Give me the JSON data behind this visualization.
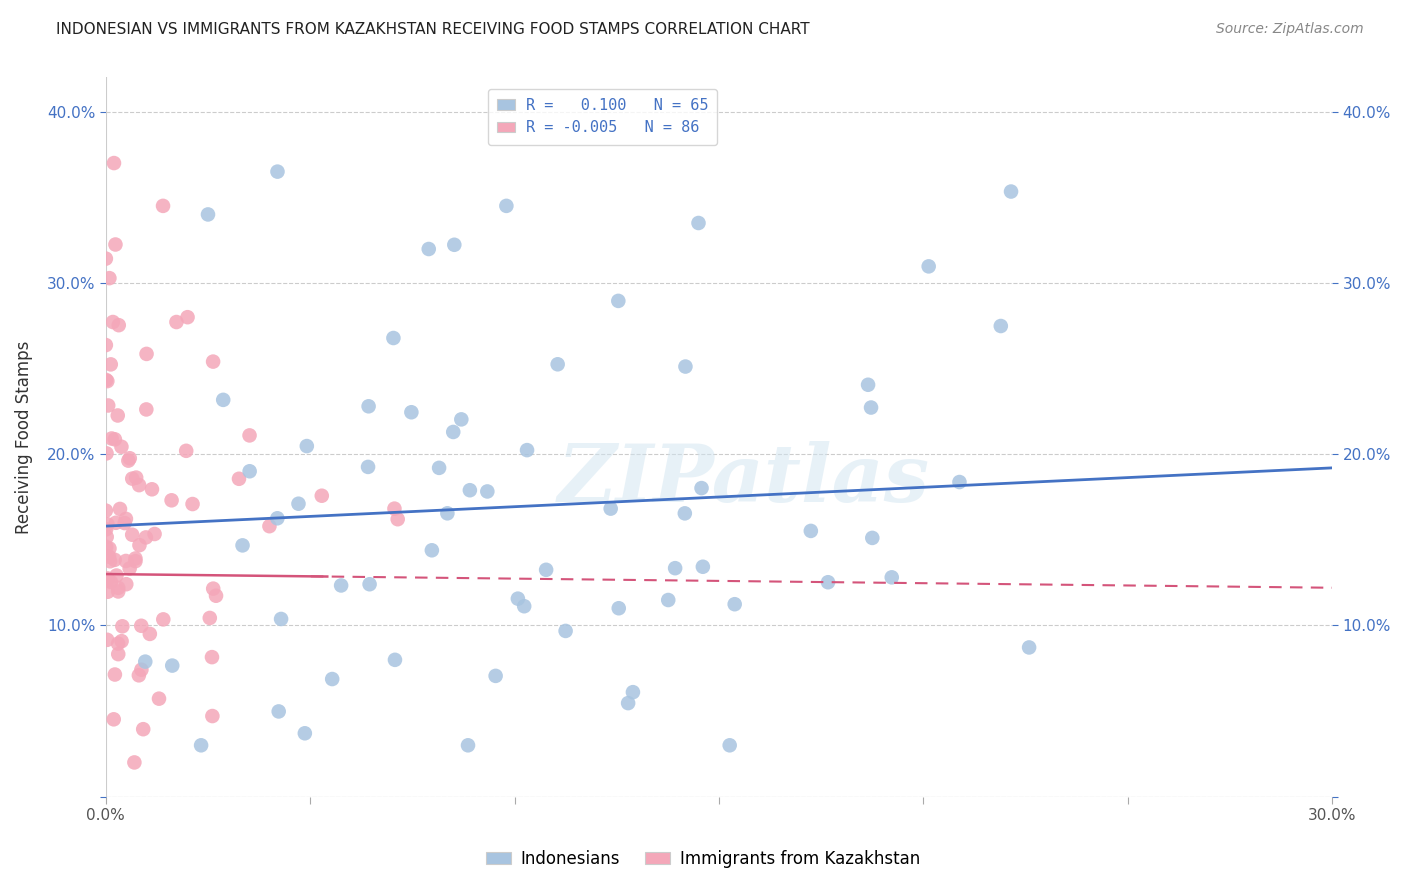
{
  "title": "INDONESIAN VS IMMIGRANTS FROM KAZAKHSTAN RECEIVING FOOD STAMPS CORRELATION CHART",
  "source": "Source: ZipAtlas.com",
  "ylabel": "Receiving Food Stamps",
  "x_ticks": [
    0.0,
    0.05,
    0.1,
    0.15,
    0.2,
    0.25,
    0.3
  ],
  "x_tick_labels": [
    "0.0%",
    "",
    "",
    "",
    "",
    "",
    "30.0%"
  ],
  "y_ticks": [
    0.0,
    0.1,
    0.2,
    0.3,
    0.4
  ],
  "y_tick_labels_left": [
    "",
    "10.0%",
    "20.0%",
    "30.0%",
    "40.0%"
  ],
  "y_tick_labels_right": [
    "",
    "10.0%",
    "20.0%",
    "30.0%",
    "40.0%"
  ],
  "blue_color": "#a8c4e0",
  "pink_color": "#f4a7b9",
  "blue_line_color": "#4472c4",
  "pink_line_color": "#d4547a",
  "R_blue": 0.1,
  "N_blue": 65,
  "R_pink": -0.005,
  "N_pink": 86,
  "legend_label_blue": "Indonesians",
  "legend_label_pink": "Immigrants from Kazakhstan",
  "watermark_text": "ZIPatlas",
  "background_color": "#ffffff",
  "grid_color": "#cccccc",
  "blue_line_start_y": 0.158,
  "blue_line_end_y": 0.192,
  "pink_line_start_y": 0.13,
  "pink_line_end_y": 0.122,
  "xlim": [
    0.0,
    0.3
  ],
  "ylim": [
    0.0,
    0.42
  ]
}
